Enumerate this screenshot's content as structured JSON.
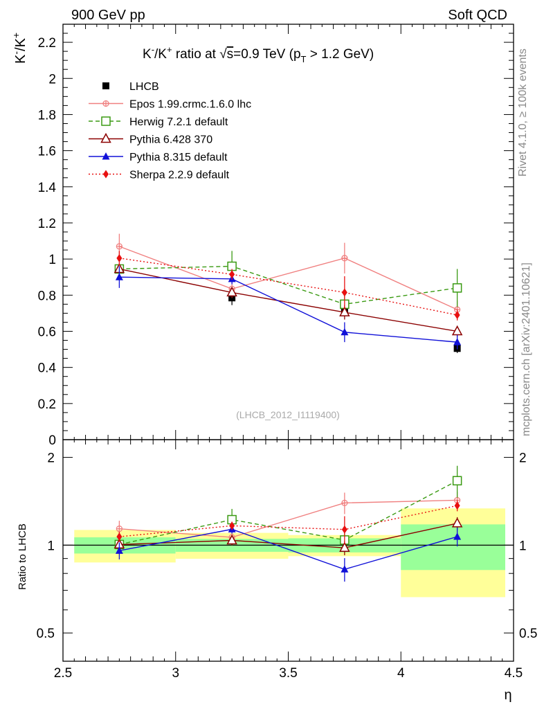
{
  "header": {
    "left": "900 GeV pp",
    "right": "Soft QCD",
    "side_top": "Rivet 4.1.0, ≥ 100k events",
    "side_bottom": "mcplots.cern.ch [arXiv:2401.10621]"
  },
  "chart_data": {
    "type": "line",
    "title": {
      "a": "K",
      "a_sup": "-",
      "b": "/K",
      "b_sup": "+",
      "c": " ratio at ",
      "sqrt": "√",
      "s": "s",
      "d": "=0.9 TeV (p",
      "d_sub": "T",
      "e": " > 1.2 GeV)"
    },
    "ylabel": {
      "a": "K",
      "a_sup": "-",
      "b": "/K",
      "b_sup": "+"
    },
    "ratio_ylabel": "Ratio to LHCB",
    "xlabel": "η",
    "watermark": "(LHCB_2012_I1119400)",
    "xlim": [
      2.5,
      4.5
    ],
    "ylim": [
      0,
      2.3
    ],
    "ratio_ylim": [
      0.4,
      2.3
    ],
    "x_ticks": [
      {
        "v": 2.5,
        "label": "2.5"
      },
      {
        "v": 3,
        "label": "3"
      },
      {
        "v": 3.5,
        "label": "3.5"
      },
      {
        "v": 4,
        "label": "4"
      },
      {
        "v": 4.5,
        "label": "4.5"
      }
    ],
    "y_ticks": [
      {
        "v": 0,
        "label": "0"
      },
      {
        "v": 0.2,
        "label": "0.2"
      },
      {
        "v": 0.4,
        "label": "0.4"
      },
      {
        "v": 0.6,
        "label": "0.6"
      },
      {
        "v": 0.8,
        "label": "0.8"
      },
      {
        "v": 1,
        "label": "1"
      },
      {
        "v": 1.2,
        "label": "1.2"
      },
      {
        "v": 1.4,
        "label": "1.4"
      },
      {
        "v": 1.6,
        "label": "1.6"
      },
      {
        "v": 1.8,
        "label": "1.8"
      },
      {
        "v": 2,
        "label": "2"
      },
      {
        "v": 2.2,
        "label": "2.2"
      }
    ],
    "ratio_ticks": [
      {
        "v": 0.5,
        "label": "0.5"
      },
      {
        "v": 1,
        "label": "1"
      },
      {
        "v": 2,
        "label": "2"
      }
    ],
    "bins": [
      [
        2.5,
        3.0
      ],
      [
        3.0,
        3.5
      ],
      [
        3.5,
        4.0
      ],
      [
        4.0,
        4.5
      ]
    ],
    "x": [
      2.75,
      3.25,
      3.75,
      4.25
    ],
    "data": {
      "name": "LHCB",
      "values": [
        0.94,
        0.785,
        0.72,
        0.505
      ],
      "errors": [
        0.025,
        0.04,
        0.03,
        0.025
      ],
      "band_stat": [
        0.06,
        0.04,
        0.04,
        0.09
      ],
      "band_total": [
        0.12,
        0.08,
        0.06,
        0.17
      ]
    },
    "series": [
      {
        "name": "Epos 1.99.crmc.1.6.0 lhc",
        "color": "#f08080",
        "dash": "",
        "marker": "cross-circle",
        "values": [
          1.07,
          0.835,
          1.005,
          0.72
        ],
        "errors": [
          0.07,
          0.05,
          0.085,
          0.05
        ]
      },
      {
        "name": "Herwig 7.2.1 default",
        "color": "#3a9a12",
        "dash": "6,4",
        "marker": "open-square",
        "values": [
          0.945,
          0.96,
          0.75,
          0.84
        ],
        "errors": [
          0.02,
          0.085,
          0.05,
          0.105
        ]
      },
      {
        "name": "Pythia 6.428 370",
        "color": "#8b0000",
        "dash": "",
        "marker": "open-triangle",
        "values": [
          0.945,
          0.815,
          0.705,
          0.6
        ],
        "errors": [
          0.02,
          0.03,
          0.04,
          0.03
        ]
      },
      {
        "name": "Pythia 8.315 default",
        "color": "#1010d8",
        "dash": "",
        "marker": "filled-triangle",
        "values": [
          0.9,
          0.89,
          0.595,
          0.54
        ],
        "errors": [
          0.06,
          0.03,
          0.055,
          0.04
        ]
      },
      {
        "name": "Sherpa 2.2.9 default",
        "color": "#e81010",
        "dash": "2,3",
        "marker": "filled-diamond",
        "values": [
          1.005,
          0.915,
          0.815,
          0.69
        ],
        "errors": [
          0.04,
          0.03,
          0.09,
          0.03
        ]
      }
    ]
  }
}
